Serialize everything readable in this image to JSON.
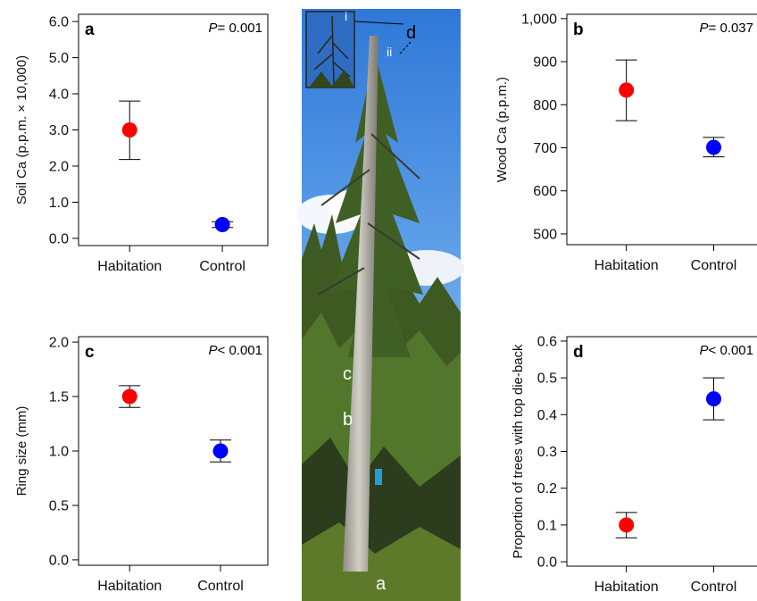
{
  "figure": {
    "photo_labels": {
      "a": "a",
      "b": "b",
      "c": "c",
      "d": "d",
      "i": "i",
      "ii": "ii"
    },
    "colors": {
      "habitation": "#ff0000",
      "control": "#0000ff",
      "sky_top": "#2f78d8",
      "sky_bottom": "#a9cff6",
      "forest_dark": "#2b3d1c",
      "forest_mid": "#4b6b25",
      "trunk": "#b9b6ae"
    }
  },
  "chart_data": [
    {
      "type": "scatter",
      "panel": "a",
      "panel_label": "a",
      "p_label": "P",
      "p_value": "= 0.001",
      "ylabel": "Soil Ca (p.p.m. × 10,000)",
      "categories": [
        "Habitation",
        "Control"
      ],
      "values": [
        3.0,
        0.38
      ],
      "error_low": [
        2.18,
        0.3
      ],
      "error_high": [
        3.8,
        0.46
      ],
      "ylim": [
        -0.2,
        6.2
      ],
      "yticks": [
        0,
        1,
        2,
        3,
        4,
        5,
        6
      ],
      "yticklabels": [
        "0.0",
        "1.0",
        "2.0",
        "3.0",
        "4.0",
        "5.0",
        "6.0"
      ]
    },
    {
      "type": "scatter",
      "panel": "b",
      "panel_label": "b",
      "p_label": "P",
      "p_value": "= 0.037",
      "ylabel": "Wood Ca (p.p.m.)",
      "categories": [
        "Habitation",
        "Control"
      ],
      "values": [
        834,
        701
      ],
      "error_low": [
        763,
        679
      ],
      "error_high": [
        904,
        724
      ],
      "ylim": [
        475,
        1010
      ],
      "yticks": [
        500,
        600,
        700,
        800,
        900,
        1000
      ],
      "yticklabels": [
        "500",
        "600",
        "700",
        "800",
        "900",
        "1,000"
      ]
    },
    {
      "type": "scatter",
      "panel": "c",
      "panel_label": "c",
      "p_label": "P",
      "p_value": "< 0.001",
      "ylabel": "Ring size (mm)",
      "categories": [
        "Habitation",
        "Control"
      ],
      "values": [
        1.5,
        1.0
      ],
      "error_low": [
        1.4,
        0.9
      ],
      "error_high": [
        1.6,
        1.1
      ],
      "ylim": [
        -0.05,
        2.05
      ],
      "yticks": [
        0,
        0.5,
        1.0,
        1.5,
        2.0
      ],
      "yticklabels": [
        "0.0",
        "0.5",
        "1.0",
        "1.5",
        "2.0"
      ]
    },
    {
      "type": "scatter",
      "panel": "d",
      "panel_label": "d",
      "p_label": "P",
      "p_value": "< 0.001",
      "ylabel": "Proportion of trees with top die-back",
      "categories": [
        "Habitation",
        "Control"
      ],
      "values": [
        0.1,
        0.443
      ],
      "error_low": [
        0.065,
        0.386
      ],
      "error_high": [
        0.134,
        0.5
      ],
      "ylim": [
        -0.012,
        0.612
      ],
      "yticks": [
        0,
        0.1,
        0.2,
        0.3,
        0.4,
        0.5,
        0.6
      ],
      "yticklabels": [
        "0.0",
        "0.1",
        "0.2",
        "0.3",
        "0.4",
        "0.5",
        "0.6"
      ]
    }
  ]
}
